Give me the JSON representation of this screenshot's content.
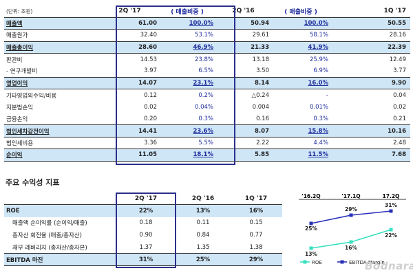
{
  "main_table": {
    "unit": "(단위: 조원)",
    "columns": [
      "2Q '17",
      "( 매출비중 )",
      "2Q '16",
      "( 매출비중 )",
      "1Q '17"
    ],
    "rows": [
      {
        "label": "매출액",
        "v": [
          "61.00",
          "100.0%",
          "50.94",
          "100.0%",
          "50.55"
        ],
        "hl": true
      },
      {
        "label": "매출원가",
        "v": [
          "32.40",
          "53.1%",
          "29.61",
          "58.1%",
          "28.16"
        ]
      },
      {
        "label": "매출총이익",
        "v": [
          "28.60",
          "46.9%",
          "21.33",
          "41.9%",
          "22.39"
        ],
        "hl": true
      },
      {
        "label": "판관비",
        "v": [
          "14.53",
          "23.8%",
          "13.18",
          "25.9%",
          "12.49"
        ]
      },
      {
        "label": "- 연구개발비",
        "v": [
          "3.97",
          "6.5%",
          "3.50",
          "6.9%",
          "3.77"
        ]
      },
      {
        "label": "영업이익",
        "v": [
          "14.07",
          "23.1%",
          "8.14",
          "16.0%",
          "9.90"
        ],
        "hl": true
      },
      {
        "label": "기타영업외수익/비용",
        "v": [
          "0.12",
          "0.2%",
          "△0.24",
          "-",
          "0.04"
        ]
      },
      {
        "label": "지분법손익",
        "v": [
          "0.02",
          "0.04%",
          "0.004",
          "0.01%",
          "0.02"
        ]
      },
      {
        "label": "금융손익",
        "v": [
          "0.20",
          "0.3%",
          "0.16",
          "0.3%",
          "0.21"
        ]
      },
      {
        "label": "법인세차감전이익",
        "v": [
          "14.41",
          "23.6%",
          "8.07",
          "15.8%",
          "10.16"
        ],
        "hl": true
      },
      {
        "label": "법인세비용",
        "v": [
          "3.36",
          "5.5%",
          "2.22",
          "4.4%",
          "2.48"
        ]
      },
      {
        "label": "순이익",
        "v": [
          "11.05",
          "18.1%",
          "5.85",
          "11.5%",
          "7.68"
        ],
        "hl": true
      }
    ]
  },
  "kpi_section": {
    "title": "주요 수익성 지표",
    "columns": [
      "2Q '17",
      "2Q '16",
      "1Q '17"
    ],
    "rows": [
      {
        "label": "ROE",
        "v": [
          "22%",
          "13%",
          "16%"
        ],
        "hl": true
      },
      {
        "label": "매출액 순이익률 (순이익/매출)",
        "v": [
          "0.18",
          "0.11",
          "0.15"
        ]
      },
      {
        "label": "총자산 회전율 (매출/총자산)",
        "v": [
          "0.90",
          "0.84",
          "0.77"
        ]
      },
      {
        "label": "재무 레버리지 (총자산/총자본)",
        "v": [
          "1.37",
          "1.35",
          "1.38"
        ]
      },
      {
        "label": "EBITDA 마진",
        "v": [
          "31%",
          "25%",
          "29%"
        ],
        "hl": true
      }
    ]
  },
  "chart_data": {
    "type": "line",
    "categories": [
      "'16.2Q",
      "'17.1Q",
      "17.2Q"
    ],
    "series": [
      {
        "name": "ROE",
        "values": [
          13,
          16,
          22
        ],
        "labels": [
          "13%",
          "16%",
          "22%"
        ],
        "color": "#35e0c0"
      },
      {
        "name": "EBITDA Margin",
        "values": [
          25,
          29,
          31
        ],
        "labels": [
          "25%",
          "29%",
          "31%"
        ],
        "color": "#2830b8"
      }
    ]
  },
  "watermark": "Bodnara"
}
